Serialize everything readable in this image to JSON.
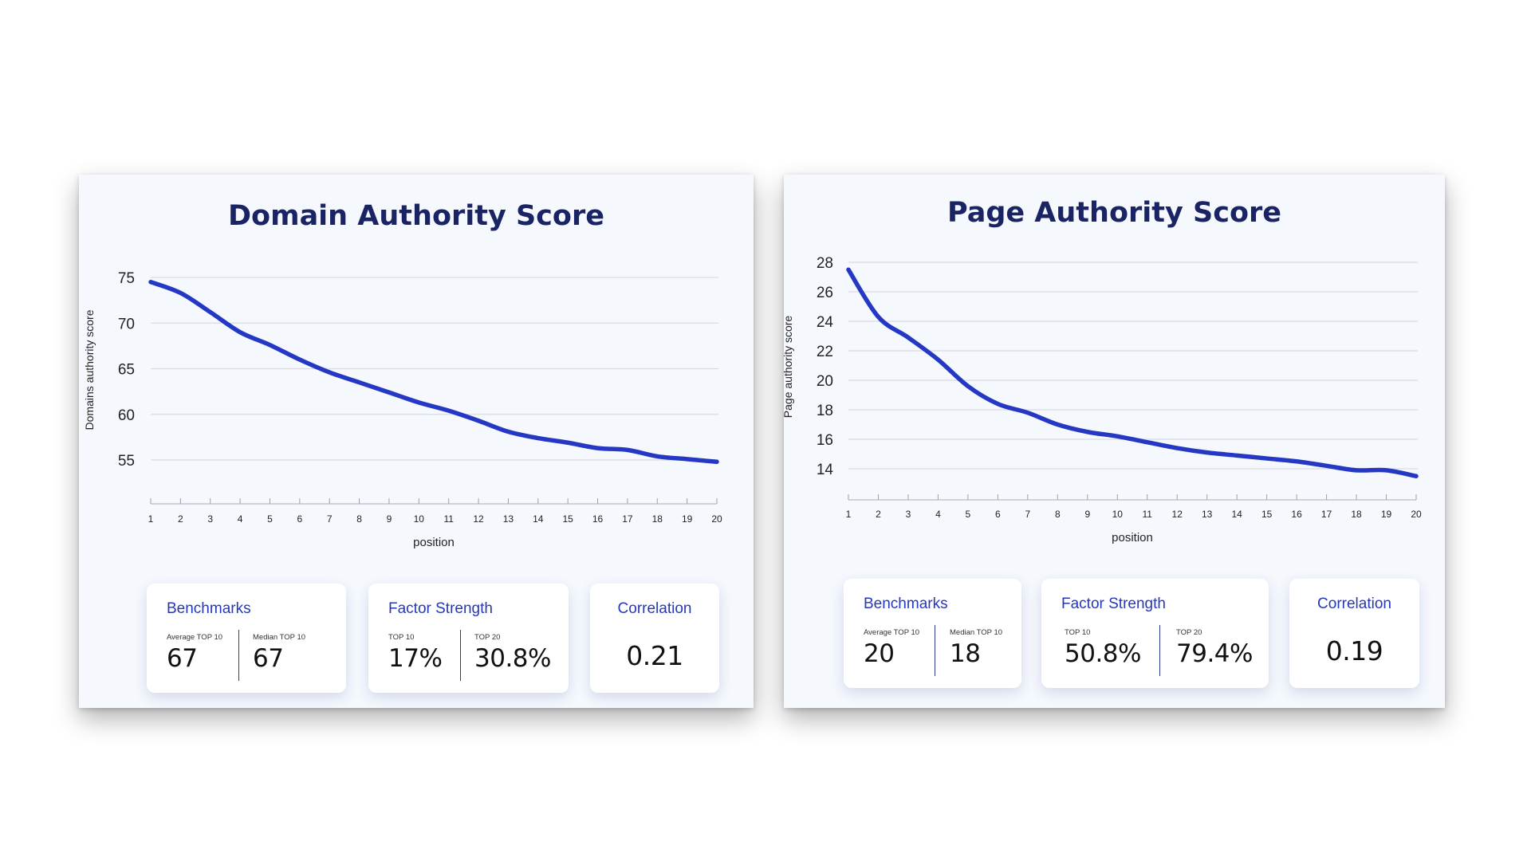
{
  "panels": [
    {
      "title": "Domain Authority Score",
      "cards": {
        "benchmarks": {
          "title": "Benchmarks",
          "metrics": [
            {
              "label": "Average TOP 10",
              "value": "67"
            },
            {
              "label": "Median TOP 10",
              "value": "67"
            }
          ]
        },
        "factor_strength": {
          "title": "Factor Strength",
          "metrics": [
            {
              "label": "TOP 10",
              "value": "17%"
            },
            {
              "label": "TOP 20",
              "value": "30.8%"
            }
          ]
        },
        "correlation": {
          "title": "Correlation",
          "value": "0.21"
        }
      }
    },
    {
      "title": "Page Authority Score",
      "cards": {
        "benchmarks": {
          "title": "Benchmarks",
          "metrics": [
            {
              "label": "Average TOP 10",
              "value": "20"
            },
            {
              "label": "Median TOP 10",
              "value": "18"
            }
          ]
        },
        "factor_strength": {
          "title": "Factor Strength",
          "metrics": [
            {
              "label": "TOP 10",
              "value": "50.8%"
            },
            {
              "label": "TOP 20",
              "value": "79.4%"
            }
          ]
        },
        "correlation": {
          "title": "Correlation",
          "value": "0.19"
        }
      }
    }
  ],
  "chart_data": [
    {
      "type": "line",
      "title": "Domain Authority Score",
      "xlabel": "position",
      "ylabel": "Domains authority score",
      "x": [
        1,
        2,
        3,
        4,
        5,
        6,
        7,
        8,
        9,
        10,
        11,
        12,
        13,
        14,
        15,
        16,
        17,
        18,
        19,
        20
      ],
      "yticks": [
        55,
        60,
        65,
        70,
        75
      ],
      "ylim": [
        50,
        76
      ],
      "grid": true,
      "color": "#2438c4",
      "series": [
        {
          "values": [
            74.5,
            73.3,
            71.2,
            69.0,
            67.6,
            66.0,
            64.6,
            63.5,
            62.4,
            61.3,
            60.4,
            59.3,
            58.1,
            57.4,
            56.9,
            56.3,
            56.1,
            55.4,
            55.1,
            54.8
          ]
        }
      ]
    },
    {
      "type": "line",
      "title": "Page Authority Score",
      "xlabel": "position",
      "ylabel": "Page authority score",
      "x": [
        1,
        2,
        3,
        4,
        5,
        6,
        7,
        8,
        9,
        10,
        11,
        12,
        13,
        14,
        15,
        16,
        17,
        18,
        19,
        20
      ],
      "yticks": [
        14,
        16,
        18,
        20,
        22,
        24,
        26,
        28
      ],
      "ylim": [
        12,
        28
      ],
      "grid": true,
      "color": "#2438c4",
      "series": [
        {
          "values": [
            27.5,
            24.3,
            22.9,
            21.4,
            19.6,
            18.4,
            17.8,
            17.0,
            16.5,
            16.2,
            15.8,
            15.4,
            15.1,
            14.9,
            14.7,
            14.5,
            14.2,
            13.9,
            13.9,
            13.5
          ]
        }
      ]
    }
  ]
}
